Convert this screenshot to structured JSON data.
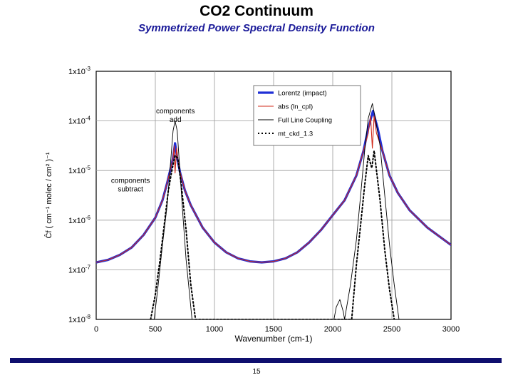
{
  "page": {
    "title": "CO2 Continuum",
    "subtitle": "Symmetrized Power Spectral Density Function",
    "page_number": "15"
  },
  "colors": {
    "lorentz": "#1f2fd6",
    "abs": "#d12a1a",
    "full_line": "#000000",
    "mtckd": "#000000",
    "grid": "#9a9a9a",
    "rule": "#0e0e6e"
  },
  "chart_data": {
    "type": "line",
    "title": "CO2 Continuum",
    "subtitle": "Symmetrized Power Spectral Density Function",
    "xlabel": "Wavenumber   (cm-1)",
    "ylabel": "Ĉf  ( cm⁻¹ molec / cm² )⁻¹",
    "xlim": [
      0,
      3000
    ],
    "ylim_log10": [
      -8,
      -3
    ],
    "x_ticks": [
      0,
      500,
      1000,
      1500,
      2000,
      2500,
      3000
    ],
    "y_ticks": [
      {
        "exp": -3,
        "base": "1x10",
        "sup": "-3"
      },
      {
        "exp": -4,
        "base": "1x10",
        "sup": "-4"
      },
      {
        "exp": -5,
        "base": "1x10",
        "sup": "-5"
      },
      {
        "exp": -6,
        "base": "1x10",
        "sup": "-6"
      },
      {
        "exp": -7,
        "base": "1x10",
        "sup": "-7"
      },
      {
        "exp": -8,
        "base": "1x10",
        "sup": "-8"
      }
    ],
    "grid": true,
    "legend_position": "top-right",
    "legend": [
      {
        "key": "lorentz",
        "label": "Lorentz (impact)"
      },
      {
        "key": "abs",
        "label": "abs (ln_cpl)"
      },
      {
        "key": "full_line",
        "label": "Full Line Coupling"
      },
      {
        "key": "mtckd",
        "label": "mt_ckd_1.3"
      }
    ],
    "annotations": [
      {
        "name": "components-add",
        "lines": [
          "components",
          "add"
        ],
        "x": 670,
        "y_log10": -3.85
      },
      {
        "name": "components-subtract",
        "lines": [
          "components",
          "subtract"
        ],
        "x": 290,
        "y_log10": -5.25
      }
    ],
    "series": [
      {
        "key": "lorentz",
        "name": "Lorentz (impact)",
        "points": [
          [
            0,
            -6.85
          ],
          [
            100,
            -6.8
          ],
          [
            200,
            -6.7
          ],
          [
            300,
            -6.55
          ],
          [
            400,
            -6.3
          ],
          [
            500,
            -5.95
          ],
          [
            560,
            -5.6
          ],
          [
            600,
            -5.25
          ],
          [
            630,
            -4.95
          ],
          [
            650,
            -4.75
          ],
          [
            667,
            -4.45
          ],
          [
            685,
            -4.75
          ],
          [
            710,
            -5.05
          ],
          [
            750,
            -5.4
          ],
          [
            800,
            -5.7
          ],
          [
            900,
            -6.15
          ],
          [
            1000,
            -6.45
          ],
          [
            1100,
            -6.65
          ],
          [
            1200,
            -6.77
          ],
          [
            1300,
            -6.83
          ],
          [
            1400,
            -6.85
          ],
          [
            1500,
            -6.83
          ],
          [
            1600,
            -6.77
          ],
          [
            1700,
            -6.65
          ],
          [
            1800,
            -6.45
          ],
          [
            1900,
            -6.2
          ],
          [
            2000,
            -5.9
          ],
          [
            2100,
            -5.6
          ],
          [
            2200,
            -5.1
          ],
          [
            2260,
            -4.6
          ],
          [
            2300,
            -4.15
          ],
          [
            2340,
            -3.8
          ],
          [
            2380,
            -4.15
          ],
          [
            2420,
            -4.6
          ],
          [
            2480,
            -5.1
          ],
          [
            2550,
            -5.45
          ],
          [
            2650,
            -5.8
          ],
          [
            2800,
            -6.15
          ],
          [
            3000,
            -6.5
          ]
        ]
      },
      {
        "key": "abs",
        "name": "abs (ln_cpl)",
        "points": [
          [
            0,
            -6.85
          ],
          [
            100,
            -6.8
          ],
          [
            200,
            -6.7
          ],
          [
            300,
            -6.55
          ],
          [
            400,
            -6.3
          ],
          [
            500,
            -5.95
          ],
          [
            560,
            -5.6
          ],
          [
            600,
            -5.25
          ],
          [
            630,
            -4.95
          ],
          [
            650,
            -4.75
          ],
          [
            660,
            -4.5
          ],
          [
            667,
            -5.05
          ],
          [
            680,
            -4.55
          ],
          [
            700,
            -4.95
          ],
          [
            750,
            -5.4
          ],
          [
            800,
            -5.7
          ],
          [
            900,
            -6.15
          ],
          [
            1000,
            -6.45
          ],
          [
            1100,
            -6.65
          ],
          [
            1200,
            -6.77
          ],
          [
            1300,
            -6.83
          ],
          [
            1400,
            -6.85
          ],
          [
            1500,
            -6.83
          ],
          [
            1600,
            -6.77
          ],
          [
            1700,
            -6.65
          ],
          [
            1800,
            -6.45
          ],
          [
            1900,
            -6.2
          ],
          [
            2000,
            -5.9
          ],
          [
            2100,
            -5.6
          ],
          [
            2200,
            -5.1
          ],
          [
            2260,
            -4.6
          ],
          [
            2300,
            -4.25
          ],
          [
            2320,
            -3.9
          ],
          [
            2335,
            -4.55
          ],
          [
            2350,
            -3.9
          ],
          [
            2370,
            -4.25
          ],
          [
            2420,
            -4.6
          ],
          [
            2480,
            -5.1
          ],
          [
            2550,
            -5.45
          ],
          [
            2650,
            -5.8
          ],
          [
            2800,
            -6.15
          ],
          [
            3000,
            -6.5
          ]
        ]
      },
      {
        "key": "full_line",
        "name": "Full Line Coupling",
        "points": [
          [
            490,
            -8.0
          ],
          [
            520,
            -7.4
          ],
          [
            560,
            -6.5
          ],
          [
            600,
            -5.7
          ],
          [
            630,
            -4.8
          ],
          [
            650,
            -4.2
          ],
          [
            667,
            -4.0
          ],
          [
            685,
            -4.2
          ],
          [
            705,
            -4.9
          ],
          [
            730,
            -5.8
          ],
          [
            760,
            -6.8
          ],
          [
            790,
            -7.5
          ],
          [
            810,
            -8.0
          ],
          [
            2010,
            -8.0
          ],
          [
            2030,
            -7.75
          ],
          [
            2060,
            -7.6
          ],
          [
            2090,
            -7.85
          ],
          [
            2100,
            -8.0
          ],
          [
            2150,
            -7.3
          ],
          [
            2200,
            -6.4
          ],
          [
            2240,
            -5.4
          ],
          [
            2270,
            -4.6
          ],
          [
            2300,
            -3.95
          ],
          [
            2335,
            -3.65
          ],
          [
            2360,
            -3.95
          ],
          [
            2400,
            -4.5
          ],
          [
            2440,
            -5.5
          ],
          [
            2480,
            -6.5
          ],
          [
            2520,
            -7.3
          ],
          [
            2560,
            -8.0
          ]
        ]
      },
      {
        "key": "mtckd",
        "name": "mt_ckd_1.3",
        "dashed": true,
        "points": [
          [
            460,
            -8.0
          ],
          [
            500,
            -7.5
          ],
          [
            540,
            -6.8
          ],
          [
            580,
            -6.0
          ],
          [
            610,
            -5.4
          ],
          [
            640,
            -5.0
          ],
          [
            667,
            -4.7
          ],
          [
            690,
            -4.75
          ],
          [
            720,
            -5.3
          ],
          [
            760,
            -6.2
          ],
          [
            800,
            -7.3
          ],
          [
            840,
            -8.0
          ],
          [
            2160,
            -8.0
          ],
          [
            2200,
            -6.9
          ],
          [
            2240,
            -6.0
          ],
          [
            2270,
            -5.3
          ],
          [
            2300,
            -4.7
          ],
          [
            2330,
            -4.95
          ],
          [
            2350,
            -4.6
          ],
          [
            2370,
            -5.0
          ],
          [
            2400,
            -5.6
          ],
          [
            2440,
            -6.6
          ],
          [
            2480,
            -7.4
          ],
          [
            2520,
            -8.0
          ]
        ]
      }
    ]
  }
}
